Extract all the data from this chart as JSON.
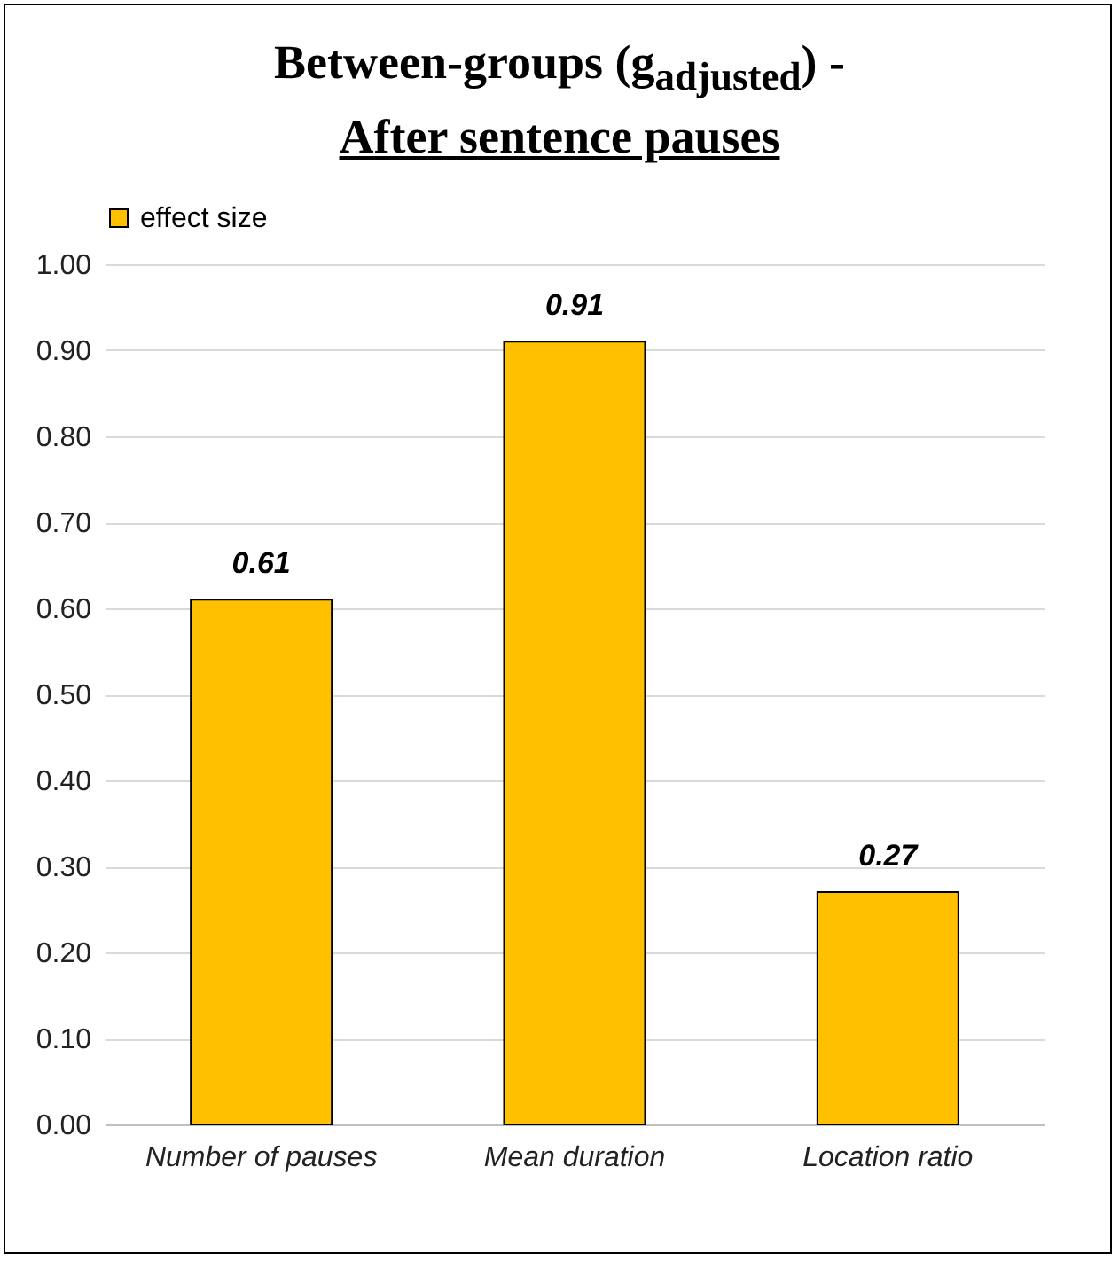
{
  "chart_data": {
    "type": "bar",
    "title": "Between-groups (g$_{adjusted}$) -",
    "subtitle": "After sentence pauses",
    "categories": [
      "Number of pauses",
      "Mean duration",
      "Location ratio"
    ],
    "series": [
      {
        "name": "effect size",
        "color": "#ffc000",
        "values": [
          0.61,
          0.91,
          0.27
        ]
      }
    ],
    "ylim": [
      0,
      1
    ],
    "yticks": [
      {
        "value": 0,
        "label": "0.00"
      },
      {
        "value": 0.1,
        "label": "0.10"
      },
      {
        "value": 0.2,
        "label": "0.20"
      },
      {
        "value": 0.3,
        "label": "0.30"
      },
      {
        "value": 0.4,
        "label": "0.40"
      },
      {
        "value": 0.5,
        "label": "0.50"
      },
      {
        "value": 0.6,
        "label": "0.60"
      },
      {
        "value": 0.7,
        "label": "0.70"
      },
      {
        "value": 0.8,
        "label": "0.80"
      },
      {
        "value": 0.9,
        "label": "0.90"
      },
      {
        "value": 1,
        "label": "1.00"
      }
    ],
    "grid": "y",
    "legend": "top",
    "data_labels": true
  }
}
